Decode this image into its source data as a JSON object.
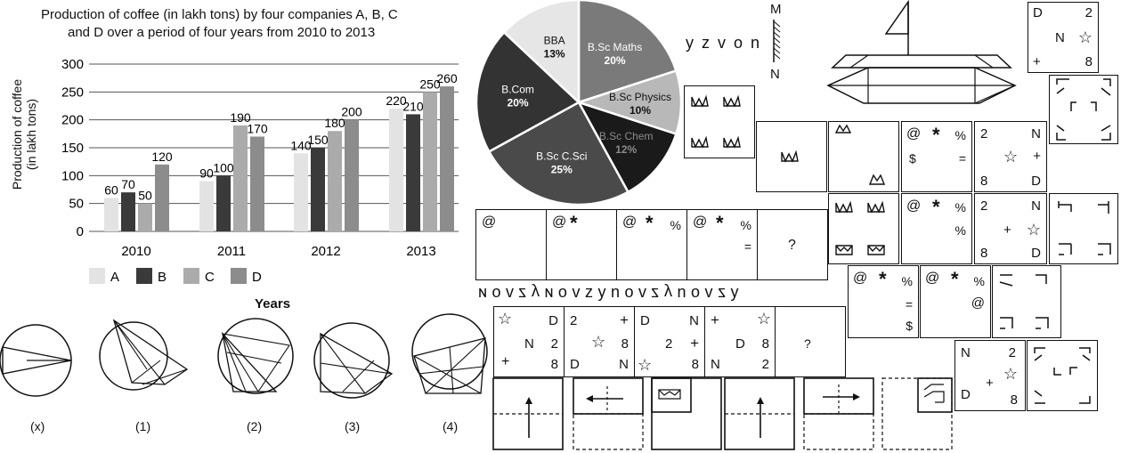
{
  "bar_chart": {
    "title_line1": "Production of coffee (in lakh tons) by four companies  A, B, C",
    "title_line2": "and D  over a period of four years from 2010 to 2013",
    "ylabel_line1": "Production of coffee",
    "ylabel_line2": "(in lakh tons)",
    "xlabel": "Years"
  },
  "figures_q": {
    "labels": [
      "(x)",
      "(1)",
      "(2)",
      "(3)",
      "(4)"
    ]
  },
  "seq1": {
    "letters": [
      "ɴ",
      "o",
      "v",
      "z",
      "y",
      "ɴ",
      "o",
      "v",
      "z",
      "y",
      "n",
      "o",
      "v",
      "z",
      "y",
      "n",
      "o",
      "v",
      "z",
      "y"
    ]
  },
  "seq2": {
    "letters": [
      "y",
      "z",
      "v",
      "o",
      "n"
    ]
  },
  "mirror": {
    "top": "M",
    "bottom": "N"
  },
  "symbol_series1": {
    "cells": [
      {
        "a": "@",
        "b": "",
        "c": "",
        "d": ""
      },
      {
        "a": "@",
        "b": "*",
        "c": "",
        "d": ""
      },
      {
        "a": "@",
        "b": "*",
        "c": "%",
        "d": ""
      },
      {
        "a": "@",
        "b": "*",
        "c": "%",
        "d": "="
      }
    ],
    "question": "?"
  },
  "symbol_series2": {
    "cells": [
      {
        "tl": "☆",
        "tr": "D",
        "m": "N",
        "mr": "2",
        "bl": "+",
        "br": "8"
      },
      {
        "tl": "2",
        "tr": "+",
        "m": "☆",
        "mr": "8",
        "bl": "D",
        "br": "N"
      },
      {
        "tl": "D",
        "tr": "N",
        "m": "2",
        "mr": "+",
        "bl": "☆",
        "br": "8"
      },
      {
        "tl": "+",
        "tr": "☆",
        "m": "D",
        "mr": "8",
        "bl": "N",
        "br": "2"
      }
    ],
    "question": "?"
  },
  "right_boxes": {
    "top_right": {
      "tl": "D",
      "tr": "2",
      "m": "N",
      "mr": "☆",
      "bl": "+",
      "br": "8"
    },
    "box_sym1": {
      "a": "@",
      "b": "*",
      "c": "%",
      "d": "$",
      "e": "="
    },
    "box_num1": {
      "tl": "2",
      "tr": "N",
      "m": "☆",
      "mr": "+",
      "bl": "8",
      "br": "D"
    },
    "box_sym2": {
      "a": "@",
      "b": "*",
      "c": "%",
      "d": "%"
    },
    "box_num2": {
      "tl": "2",
      "tr": "N",
      "m": "+",
      "mr": "☆",
      "bl": "8",
      "br": "D"
    },
    "box_sym3": {
      "a": "@",
      "b": "*",
      "c": "%",
      "d": "=",
      "e": "$"
    },
    "box_sym4": {
      "a": "@",
      "b": "*",
      "c": "%",
      "d": "@"
    },
    "box_num3": {
      "tl": "N",
      "tr": "2",
      "m": "+",
      "mr": "☆",
      "bl": "D",
      "br": "8"
    }
  },
  "chart_data": [
    {
      "type": "bar",
      "title": "Production of coffee (in lakh tons) by four companies  A, B, C and D  over a period of four years from 2010 to 2013",
      "xlabel": "Years",
      "ylabel": "Production of coffee (in lakh tons)",
      "categories": [
        "2010",
        "2011",
        "2012",
        "2013"
      ],
      "series": [
        {
          "name": "A",
          "values": [
            60,
            90,
            140,
            220
          ],
          "color": "#e3e3e3"
        },
        {
          "name": "B",
          "values": [
            70,
            100,
            150,
            210
          ],
          "color": "#3a3a3a"
        },
        {
          "name": "C",
          "values": [
            50,
            190,
            180,
            250
          ],
          "color": "#ababab"
        },
        {
          "name": "D",
          "values": [
            120,
            170,
            200,
            260
          ],
          "color": "#8c8c8c"
        }
      ],
      "ylim": [
        0,
        300
      ],
      "yticks": [
        0,
        50,
        100,
        150,
        200,
        250,
        300
      ],
      "grid": true,
      "legend": "bottom"
    },
    {
      "type": "pie",
      "slices": [
        {
          "label": "B.Sc Maths",
          "value": 20,
          "text": "20%",
          "color": "#7a7a7a"
        },
        {
          "label": "B.Sc Physics",
          "value": 10,
          "text": "10%",
          "color": "#b8b8b8"
        },
        {
          "label": "B.Sc Chem",
          "value": 12,
          "text": "12%",
          "color": "#1a1a1a"
        },
        {
          "label": "B.Sc C.Sci",
          "value": 25,
          "text": "25%",
          "color": "#4a4a4a"
        },
        {
          "label": "B.Com",
          "value": 20,
          "text": "20%",
          "color": "#333333"
        },
        {
          "label": "BBA",
          "value": 13,
          "text": "13%",
          "color": "#e6e6e6"
        }
      ]
    }
  ]
}
